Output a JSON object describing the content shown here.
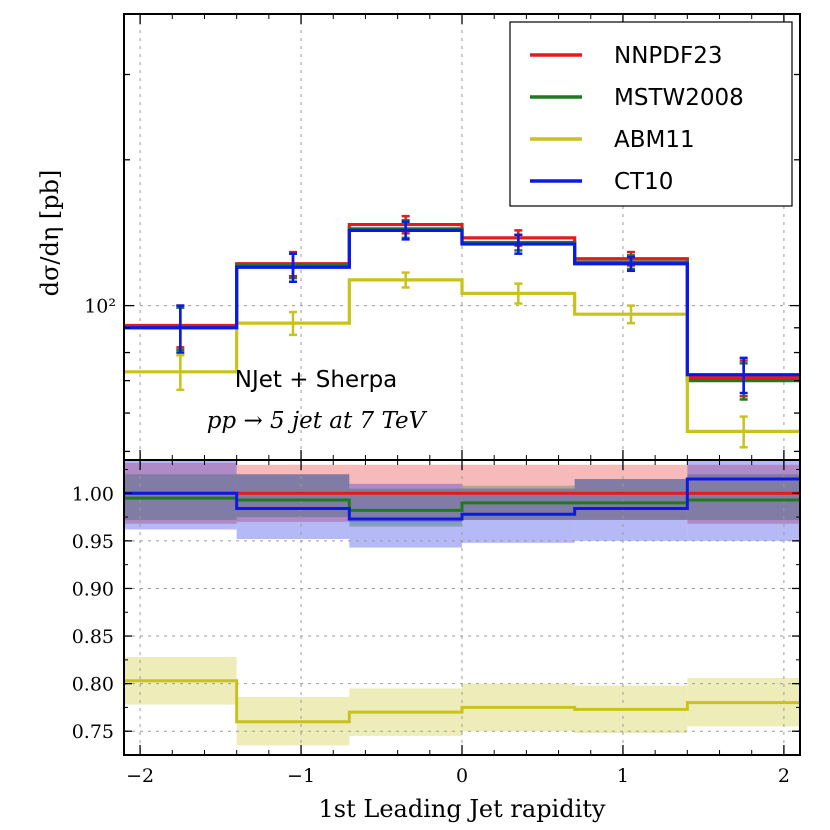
{
  "chart_data": {
    "type": "line",
    "style": "step-histogram with ratio panel",
    "bin_edges": [
      -2.1,
      -1.4,
      -0.7,
      0.0,
      0.7,
      1.4,
      2.1
    ],
    "bin_centers": [
      -1.75,
      -1.05,
      -0.35,
      0.35,
      1.05,
      1.75
    ],
    "top_panel": {
      "ylabel": "dσ/dη [pb]",
      "yscale": "log",
      "ylim": [
        48,
        400
      ],
      "yticklabel": "10²",
      "annotation": {
        "line1": "NJet + Sherpa",
        "line2": "pp → 5 jet at 7 TeV"
      },
      "series": [
        {
          "name": "NNPDF23",
          "color": "#e41a1c",
          "values": [
            91,
            122,
            147,
            138,
            125,
            71
          ],
          "errors": [
            9,
            7,
            6,
            5,
            4,
            6
          ]
        },
        {
          "name": "MSTW2008",
          "color": "#1f7a1f",
          "values": [
            90,
            121,
            144,
            135,
            123,
            70
          ],
          "errors": [
            9,
            7,
            6,
            5,
            4,
            6
          ]
        },
        {
          "name": "ABM11",
          "color": "#c8c21a",
          "values": [
            73,
            92,
            113,
            106,
            96,
            55
          ],
          "errors": [
            6,
            5,
            4,
            5,
            4,
            4
          ]
        },
        {
          "name": "CT10",
          "color": "#0a1ae6",
          "values": [
            90,
            120,
            143,
            134,
            122,
            72
          ],
          "errors": [
            10,
            8,
            6,
            6,
            4,
            6
          ]
        }
      ]
    },
    "bottom_panel": {
      "ylabel": "",
      "ylim": [
        0.725,
        1.035
      ],
      "yticks": [
        "0.75",
        "0.80",
        "0.85",
        "0.90",
        "0.95",
        "1.00"
      ],
      "series": [
        {
          "name": "NNPDF23",
          "color": "#e41a1c",
          "values": [
            1.0,
            1.0,
            1.0,
            1.0,
            1.0,
            1.0
          ],
          "band_low": [
            0.968,
            0.97,
            0.97,
            0.972,
            0.972,
            0.968
          ],
          "band_high": [
            1.032,
            1.03,
            1.03,
            1.03,
            1.03,
            1.03
          ]
        },
        {
          "name": "MSTW2008",
          "color": "#1f7a1f",
          "values": [
            0.995,
            0.993,
            0.982,
            0.99,
            0.99,
            0.993
          ],
          "band_low": [
            0.972,
            0.975,
            0.965,
            0.972,
            0.972,
            0.972
          ],
          "band_high": [
            1.02,
            1.02,
            1.005,
            1.008,
            1.015,
            1.02
          ]
        },
        {
          "name": "ABM11",
          "color": "#c8c21a",
          "values": [
            0.803,
            0.76,
            0.77,
            0.775,
            0.773,
            0.78
          ],
          "band_low": [
            0.778,
            0.735,
            0.745,
            0.75,
            0.748,
            0.755
          ],
          "band_high": [
            0.828,
            0.786,
            0.795,
            0.8,
            0.798,
            0.806
          ]
        },
        {
          "name": "CT10",
          "color": "#0a1ae6",
          "values": [
            1.0,
            0.984,
            0.973,
            0.978,
            0.984,
            1.015
          ],
          "band_low": [
            0.962,
            0.952,
            0.943,
            0.948,
            0.95,
            0.95
          ],
          "band_high": [
            1.04,
            1.02,
            1.01,
            1.005,
            1.015,
            1.045
          ]
        }
      ]
    },
    "xlabel": "1st Leading Jet rapidity",
    "xlim": [
      -2.1,
      2.1
    ],
    "xticks": [
      -2,
      -1,
      0,
      1,
      2
    ],
    "xticklabels": [
      "−2",
      "−1",
      "0",
      "1",
      "2"
    ],
    "legend": {
      "placement": "top-right",
      "entries": [
        "NNPDF23",
        "MSTW2008",
        "ABM11",
        "CT10"
      ]
    }
  }
}
